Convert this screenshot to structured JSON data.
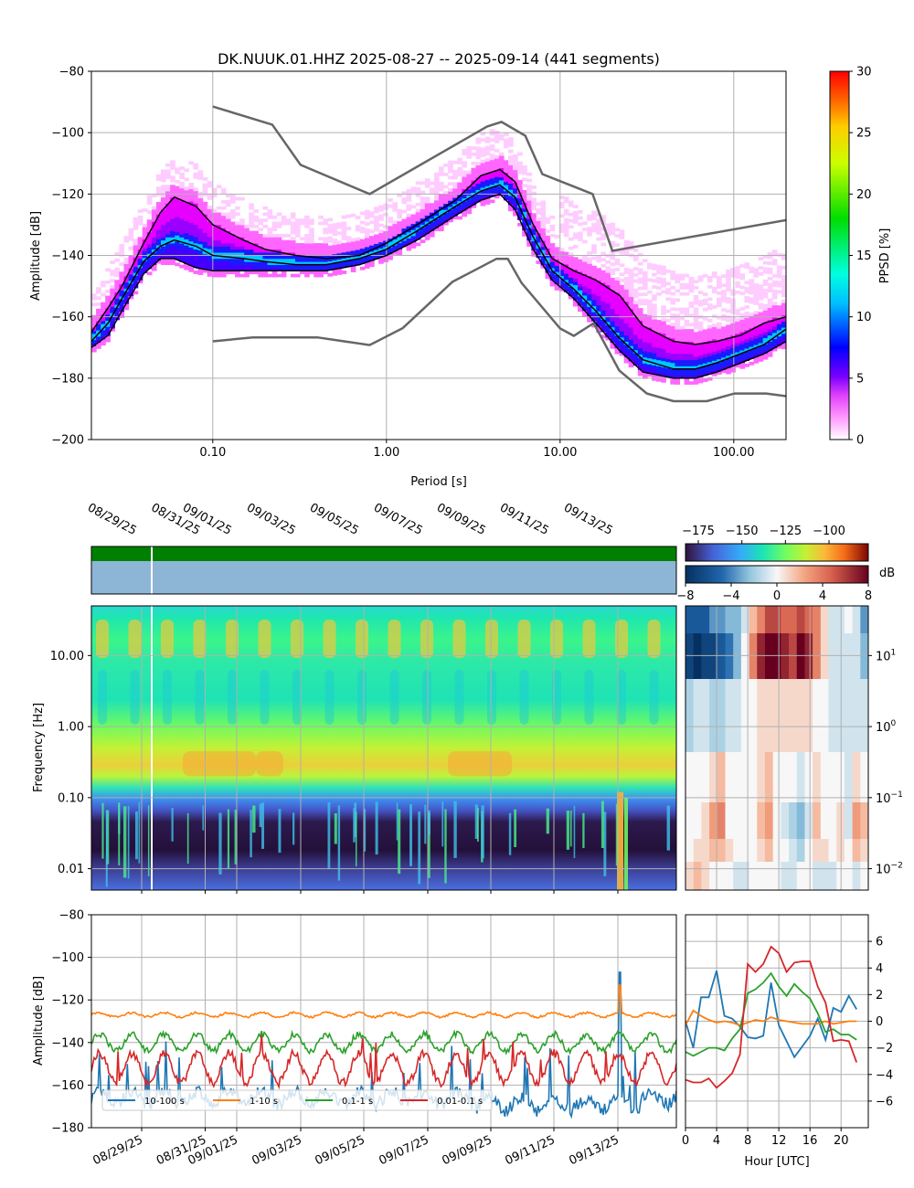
{
  "chart_data": [
    {
      "id": "ppsd",
      "type": "heatmap",
      "title": "DK.NUUK.01.HHZ   2025-08-27 -- 2025-09-14  (441 segments)",
      "xlabel": "Period [s]",
      "ylabel": "Amplitude [dB]",
      "x_scale": "log",
      "xlim": [
        0.02,
        200
      ],
      "ylim": [
        -200,
        -80
      ],
      "x_ticks": [
        0.1,
        1,
        10,
        100
      ],
      "x_tick_labels": [
        "0.10",
        "1.00",
        "10.00",
        "100.00"
      ],
      "y_ticks": [
        -200,
        -180,
        -160,
        -140,
        -120,
        -100,
        -80
      ],
      "grid": true,
      "colorbar": {
        "label": "PPSD [%]",
        "min": 0,
        "max": 30,
        "ticks": [
          0,
          5,
          10,
          15,
          20,
          25,
          30
        ]
      },
      "noise_models": {
        "NHNM": {
          "x": [
            0.1,
            0.22,
            0.32,
            0.8,
            3.8,
            4.6,
            6.3,
            7.9,
            15.4,
            20,
            354
          ],
          "y": [
            -91.5,
            -97.4,
            -110.5,
            -120,
            -98,
            -96.5,
            -101,
            -113.5,
            -120,
            -138.5,
            -126
          ]
        },
        "NLNM": {
          "x": [
            0.1,
            0.17,
            0.4,
            0.8,
            1.24,
            2.4,
            4.3,
            5,
            6,
            10,
            12,
            15.6,
            21.9,
            31.6,
            45,
            70,
            101,
            154,
            328
          ],
          "y": [
            -168,
            -166.7,
            -166.7,
            -169.2,
            -163.7,
            -148.6,
            -141.1,
            -141.1,
            -149,
            -163.8,
            -166.2,
            -162.1,
            -177.5,
            -185,
            -187.5,
            -187.5,
            -185,
            -185,
            -187.5
          ]
        }
      },
      "percentile_curves": [
        {
          "x": [
            0.02,
            0.025,
            0.03,
            0.04,
            0.05,
            0.06,
            0.08,
            0.1,
            0.15,
            0.2,
            0.3,
            0.45,
            0.7,
            1,
            1.5,
            2.5,
            3.5,
            4.5,
            5.5,
            7,
            9,
            12,
            16,
            22,
            30,
            45,
            60,
            80,
            110,
            150,
            200
          ],
          "y": [
            -165,
            -157,
            -150,
            -136,
            -126,
            -121,
            -124,
            -130,
            -135,
            -138,
            -140,
            -141,
            -140,
            -136,
            -130,
            -122,
            -114,
            -112,
            -116,
            -130,
            -141,
            -145,
            -148,
            -153,
            -163,
            -168,
            -169,
            -168,
            -166,
            -162,
            -160
          ]
        },
        {
          "x": [
            0.02,
            0.025,
            0.03,
            0.04,
            0.05,
            0.06,
            0.08,
            0.1,
            0.15,
            0.2,
            0.3,
            0.45,
            0.7,
            1,
            1.5,
            2.5,
            3.5,
            4.5,
            5.5,
            7,
            9,
            12,
            16,
            22,
            30,
            45,
            60,
            80,
            110,
            150,
            200
          ],
          "y": [
            -168,
            -162,
            -154,
            -142,
            -137,
            -135,
            -137,
            -140,
            -141,
            -142,
            -143,
            -143,
            -141,
            -138,
            -132,
            -124,
            -119,
            -117,
            -121,
            -134,
            -145,
            -151,
            -158,
            -167,
            -174,
            -177,
            -177,
            -175,
            -172,
            -169,
            -164
          ]
        },
        {
          "x": [
            0.02,
            0.025,
            0.03,
            0.04,
            0.05,
            0.06,
            0.08,
            0.1,
            0.15,
            0.2,
            0.3,
            0.45,
            0.7,
            1,
            1.5,
            2.5,
            3.5,
            4.5,
            5.5,
            7,
            9,
            12,
            16,
            22,
            30,
            45,
            60,
            80,
            110,
            150,
            200
          ],
          "y": [
            -170,
            -166,
            -158,
            -146,
            -141,
            -141,
            -144,
            -145,
            -145,
            -145,
            -145,
            -145,
            -143,
            -140,
            -135,
            -127,
            -122,
            -120,
            -125,
            -138,
            -148,
            -154,
            -162,
            -171,
            -178,
            -180,
            -180,
            -178,
            -175,
            -172,
            -168
          ]
        }
      ]
    },
    {
      "id": "spectrogram",
      "type": "heatmap",
      "ylabel": "Frequency [Hz]",
      "y_scale": "log",
      "ylim": [
        0.005,
        50
      ],
      "y_ticks": [
        0.01,
        0.1,
        1,
        10
      ],
      "y_tick_labels": [
        "0.01",
        "0.10",
        "1.00",
        "10.00"
      ],
      "x_dates": [
        "08/29/25",
        "08/31/25",
        "09/01/25",
        "09/03/25",
        "09/05/25",
        "09/07/25",
        "09/09/25",
        "09/11/25",
        "09/13/25"
      ],
      "date_range": [
        "2025-08-27",
        "2025-09-14"
      ],
      "colorbar_ticks": [
        -175,
        -150,
        -125,
        -100
      ],
      "diff_colorbar": {
        "label": "dB",
        "ticks": [
          -8,
          -4,
          0,
          4,
          8
        ]
      },
      "gap_at": "2025-08-30T20:00"
    },
    {
      "id": "diurnal",
      "type": "heatmap",
      "y_scale": "log",
      "ylim": [
        0.005,
        50
      ],
      "y_tick_labels": [
        "10^-2",
        "10^-1",
        "10^0",
        "10^1"
      ],
      "columns_hours": [
        0,
        1,
        2,
        3,
        4,
        5,
        6,
        7,
        8,
        9,
        10,
        11,
        12,
        13,
        14,
        15,
        16,
        17,
        18,
        19,
        20,
        21,
        22
      ],
      "bands_hz": [
        20,
        10,
        1,
        0.1,
        0.05,
        0.02,
        0.01
      ],
      "values": [
        [
          -6,
          -6,
          -6,
          -4,
          -4,
          -3,
          -3,
          -1,
          2,
          4,
          6,
          6,
          5,
          5,
          6,
          5,
          4,
          1,
          -1,
          -1,
          0,
          -1,
          -4
        ],
        [
          -7,
          -8,
          -7,
          -7,
          -6,
          -5,
          -3,
          0,
          4,
          7,
          8,
          8,
          7,
          6,
          8,
          7,
          4,
          1,
          -1,
          -1,
          -1,
          -1,
          -3
        ],
        [
          -2,
          -1,
          -1,
          -2,
          -2,
          -1,
          -1,
          0,
          0,
          1,
          1,
          1,
          1,
          1,
          1,
          1,
          0,
          0,
          -1,
          -1,
          -1,
          -1,
          -1
        ],
        [
          0,
          0,
          0,
          1,
          2,
          0,
          0,
          0,
          0,
          1,
          2,
          0,
          0,
          0,
          -1,
          0,
          1,
          0,
          0,
          0,
          -1,
          1,
          0
        ],
        [
          0,
          0,
          1,
          3,
          4,
          0,
          0,
          0,
          0,
          2,
          3,
          0,
          -1,
          -2,
          -3,
          -1,
          2,
          0,
          0,
          1,
          -1,
          3,
          2
        ],
        [
          0,
          1,
          1,
          2,
          2,
          1,
          0,
          0,
          0,
          1,
          2,
          0,
          0,
          -1,
          -2,
          0,
          1,
          1,
          0,
          1,
          0,
          2,
          1
        ],
        [
          1,
          2,
          1,
          0,
          0,
          0,
          -1,
          -1,
          0,
          0,
          0,
          0,
          -1,
          -1,
          0,
          0,
          -1,
          -1,
          -1,
          0,
          0,
          -1,
          0
        ]
      ]
    },
    {
      "id": "band-timeseries",
      "type": "line",
      "ylabel": "Amplitude [dB]",
      "ylim": [
        -180,
        -80
      ],
      "y_ticks": [
        -180,
        -160,
        -140,
        -120,
        -100,
        -80
      ],
      "x_dates": [
        "08/29/25",
        "08/31/25",
        "09/01/25",
        "09/03/25",
        "09/05/25",
        "09/07/25",
        "09/09/25",
        "09/11/25",
        "09/13/25"
      ],
      "legend": "lower-left",
      "series": [
        {
          "name": "10-100 s",
          "color": "#1f77b4",
          "base": -166,
          "amp": 3,
          "noise": 3,
          "spikes": [
            [
              "09/13/25",
              -107
            ]
          ]
        },
        {
          "name": "1-10 s",
          "color": "#ff7f0e",
          "base": -127,
          "amp": 1,
          "noise": 0.5,
          "spikes": [
            [
              "09/13/25",
              -113
            ]
          ]
        },
        {
          "name": "0.1-1 s",
          "color": "#2ca02c",
          "base": -140,
          "amp": 4,
          "noise": 1.5,
          "spikes": []
        },
        {
          "name": "0.01-0.1 s",
          "color": "#d62728",
          "base": -152,
          "amp": 7,
          "noise": 2,
          "spikes": []
        }
      ]
    },
    {
      "id": "diurnal-band-means",
      "type": "line",
      "xlabel": "Hour [UTC]",
      "x_ticks": [
        0,
        4,
        8,
        12,
        16,
        20
      ],
      "y_ticks": [
        -6,
        -4,
        -2,
        0,
        2,
        4,
        6
      ],
      "ylim": [
        -8,
        8
      ],
      "series": [
        {
          "name": "10-100 s",
          "color": "#1f77b4",
          "x": [
            0,
            1,
            2,
            3,
            4,
            5,
            6,
            7,
            8,
            9,
            10,
            11,
            12,
            13,
            14,
            15,
            16,
            17,
            18,
            19,
            20,
            21,
            22
          ],
          "y": [
            0,
            -2,
            1.8,
            1.8,
            3.8,
            0.4,
            0.2,
            -0.4,
            -1.2,
            -1.3,
            -1.1,
            2.9,
            -0.3,
            -1.5,
            -2.7,
            -1.9,
            -1.1,
            0.2,
            -1.4,
            1,
            0.7,
            1.9,
            0.9
          ]
        },
        {
          "name": "1-10 s",
          "color": "#ff7f0e",
          "x": [
            0,
            1,
            2,
            3,
            4,
            5,
            6,
            7,
            8,
            9,
            10,
            11,
            12,
            13,
            14,
            15,
            16,
            17,
            18,
            19,
            20,
            21,
            22
          ],
          "y": [
            -0.3,
            0.8,
            0.4,
            0.1,
            -0.1,
            0,
            -0.1,
            -0.3,
            -0.1,
            0.1,
            0,
            0.3,
            0.1,
            0,
            -0.1,
            -0.2,
            -0.2,
            -0.2,
            0,
            -0.2,
            -0.1,
            0,
            0
          ]
        },
        {
          "name": "0.1-1 s",
          "color": "#2ca02c",
          "x": [
            0,
            1,
            2,
            3,
            4,
            5,
            6,
            7,
            8,
            9,
            10,
            11,
            12,
            13,
            14,
            15,
            16,
            17,
            18,
            19,
            20,
            21,
            22
          ],
          "y": [
            -2.3,
            -2.6,
            -2.3,
            -2.0,
            -2.0,
            -2.2,
            -1.3,
            -0.6,
            2.1,
            2.4,
            2.9,
            3.6,
            2.6,
            1.9,
            2.8,
            2.2,
            1.7,
            0.6,
            -0.8,
            -0.6,
            -1.0,
            -1.0,
            -1.4
          ]
        },
        {
          "name": "0.01-0.1 s",
          "color": "#d62728",
          "x": [
            0,
            1,
            2,
            3,
            4,
            5,
            6,
            7,
            8,
            9,
            10,
            11,
            12,
            13,
            14,
            15,
            16,
            17,
            18,
            19,
            20,
            21,
            22
          ],
          "y": [
            -4.4,
            -4.6,
            -4.6,
            -4.3,
            -5.0,
            -4.5,
            -3.9,
            -2.5,
            4.3,
            3.7,
            4.3,
            5.6,
            5.1,
            3.7,
            4.4,
            4.5,
            4.5,
            2.6,
            1.4,
            -1.5,
            -1.4,
            -1.5,
            -3.1
          ]
        }
      ]
    }
  ]
}
